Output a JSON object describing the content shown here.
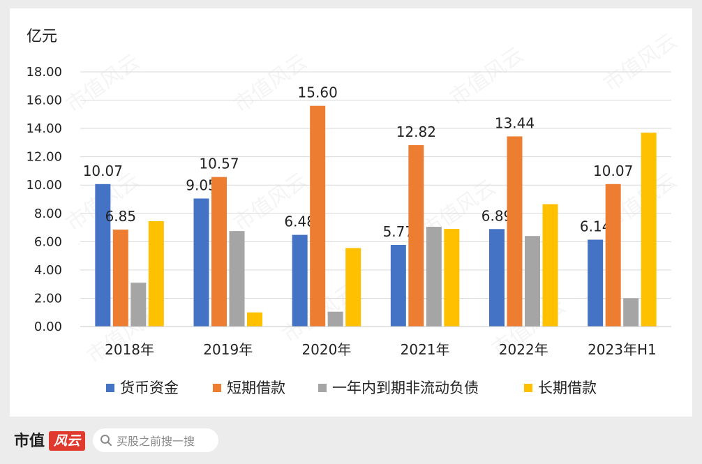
{
  "chart_data": {
    "type": "bar",
    "unit_label": "亿元",
    "categories": [
      "2018年",
      "2019年",
      "2020年",
      "2021年",
      "2022年",
      "2023年H1"
    ],
    "series": [
      {
        "name": "货币资金",
        "color": "#4472C4",
        "values": [
          10.07,
          9.05,
          6.48,
          5.77,
          6.89,
          6.14
        ],
        "labels": [
          "10.07",
          "9.05",
          "6.48",
          "5.77",
          "6.89",
          "6.14"
        ]
      },
      {
        "name": "短期借款",
        "color": "#ED7D31",
        "values": [
          6.85,
          10.57,
          15.6,
          12.82,
          13.44,
          10.07
        ],
        "labels": [
          "6.85",
          "10.57",
          "15.60",
          "12.82",
          "13.44",
          "10.07"
        ]
      },
      {
        "name": "一年内到期非流动负债",
        "color": "#A5A5A5",
        "values": [
          3.1,
          6.75,
          1.05,
          7.05,
          6.4,
          2.0
        ]
      },
      {
        "name": "长期借款",
        "color": "#FFC000",
        "values": [
          7.45,
          1.0,
          5.55,
          6.9,
          8.65,
          13.7
        ]
      }
    ],
    "ylim": [
      0,
      18
    ],
    "yticks": [
      "0.00",
      "2.00",
      "4.00",
      "6.00",
      "8.00",
      "10.00",
      "12.00",
      "14.00",
      "16.00",
      "18.00"
    ],
    "grid": true,
    "legend_position": "bottom",
    "watermark": "市值风云"
  },
  "footer": {
    "brand_text": "市值",
    "brand_badge": "风云",
    "search_placeholder": "买股之前搜一搜"
  }
}
